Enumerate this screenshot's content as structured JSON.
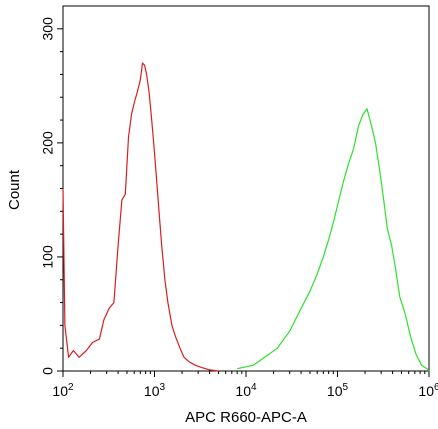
{
  "chart_data": {
    "type": "line",
    "title": "",
    "xlabel": "APC R660-APC-A",
    "ylabel": "Count",
    "x_scale": "log",
    "xlim": [
      100,
      1000000
    ],
    "ylim": [
      0,
      320
    ],
    "grid": false,
    "legend": "none",
    "x_ticks": [
      {
        "base": "10",
        "exp": "2",
        "value": 100
      },
      {
        "base": "10",
        "exp": "3",
        "value": 1000
      },
      {
        "base": "10",
        "exp": "4",
        "value": 10000
      },
      {
        "base": "10",
        "exp": "5",
        "value": 100000
      },
      {
        "base": "10",
        "exp": "6",
        "value": 1000000
      }
    ],
    "y_ticks": [
      {
        "label": "0",
        "value": 0
      },
      {
        "label": "100",
        "value": 100
      },
      {
        "label": "200",
        "value": 200
      },
      {
        "label": "300",
        "value": 300
      }
    ],
    "series": [
      {
        "color": "#d81e1e",
        "x": [
          100,
          105,
          115,
          130,
          150,
          180,
          210,
          250,
          280,
          320,
          360,
          400,
          440,
          480,
          520,
          560,
          600,
          650,
          700,
          740,
          780,
          820,
          870,
          920,
          980,
          1050,
          1120,
          1200,
          1300,
          1400,
          1550,
          1700,
          1900,
          2100,
          2400,
          2800,
          3300,
          4000,
          5000
        ],
        "y": [
          160,
          40,
          12,
          18,
          12,
          18,
          25,
          28,
          45,
          55,
          60,
          110,
          150,
          155,
          205,
          225,
          235,
          245,
          255,
          270,
          268,
          260,
          245,
          225,
          200,
          170,
          140,
          110,
          80,
          60,
          40,
          30,
          20,
          12,
          8,
          5,
          3,
          1,
          0
        ]
      },
      {
        "color": "#2ee02e",
        "x": [
          8000,
          12000,
          16000,
          22000,
          30000,
          40000,
          50000,
          60000,
          70000,
          80000,
          90000,
          100000,
          115000,
          130000,
          150000,
          170000,
          190000,
          210000,
          235000,
          260000,
          290000,
          320000,
          350000,
          390000,
          430000,
          480000,
          550000,
          630000,
          720000,
          830000,
          950000,
          1000000
        ],
        "y": [
          2,
          5,
          12,
          20,
          35,
          55,
          70,
          85,
          100,
          115,
          130,
          145,
          165,
          180,
          195,
          215,
          225,
          230,
          215,
          200,
          175,
          150,
          125,
          110,
          90,
          65,
          50,
          30,
          15,
          5,
          2,
          0
        ]
      }
    ]
  }
}
